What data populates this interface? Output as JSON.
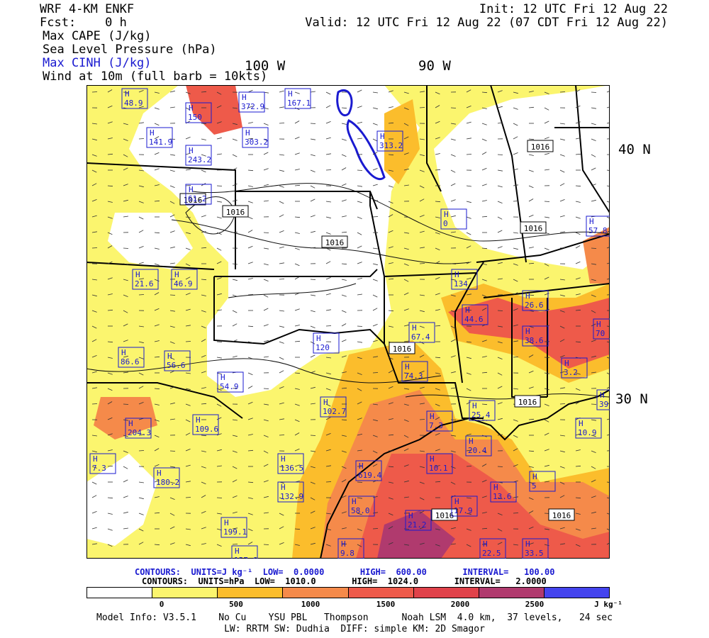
{
  "header": {
    "model": "WRF 4-KM ENKF",
    "fcst": "Fcst:    0 h",
    "init": "Init: 12 UTC Fri 12 Aug 22",
    "valid": "Valid: 12 UTC Fri 12 Aug 22 (07 CDT Fri 12 Aug 22)",
    "fields": [
      "Max CAPE (J/kg)",
      "Sea Level Pressure (hPa)",
      "Max CINH (J/kg)",
      "Wind at 10m (full barb = 10kts)"
    ]
  },
  "map": {
    "lon_labels": [
      "100 W",
      "90 W"
    ],
    "lat_labels": [
      "40 N",
      "30 N"
    ],
    "pressure_labels": [
      "1016",
      "1016",
      "1016",
      "1016",
      "1016",
      "1016",
      "1016",
      "1016",
      "1016"
    ],
    "cape_labels": [
      "48.9",
      "150",
      "372.9",
      "167.1",
      "141.9",
      "243.2",
      "303.2",
      "313.2",
      "61.2",
      "21.6",
      "46.9",
      "86.6",
      "56.6",
      "54.9",
      "102.7",
      "109.6",
      "204.3",
      "180.2",
      "136.5",
      "619.4",
      "132.9",
      "199.1",
      "157.6",
      "58.0",
      "9.8",
      "21.2",
      "17.9",
      "10.1",
      "20.4",
      "13.6",
      "22.5",
      "33.5",
      "10.9",
      "5",
      "3.2",
      "38.6",
      "26.6",
      "70",
      "57.8",
      "134",
      "44.6",
      "67.4",
      "74.3",
      "7.3",
      "25.4",
      "39",
      "120",
      "7.3",
      "0"
    ]
  },
  "legend": {
    "cape_contours": "CONTOURS:  UNITS=J kg⁻¹  LOW=  0.0000       HIGH=  600.00       INTERVAL=   100.00",
    "slp_contours": "CONTOURS:  UNITS=hPa  LOW=  1010.0       HIGH=  1024.0       INTERVAL=   2.0000",
    "ticks": [
      "0",
      "500",
      "1000",
      "1500",
      "2000",
      "2500"
    ],
    "unit": "J kg⁻¹",
    "colors": [
      "#ffffff",
      "#fbf56e",
      "#fbbd2c",
      "#f58a4a",
      "#ee5a4a",
      "#e0424a",
      "#b03a6e",
      "#4444ee"
    ]
  },
  "footer": {
    "line1": "Model Info: V3.5.1    No Cu    YSU PBL   Thompson      Noah LSM  4.0 km,  37 levels,   24 sec",
    "line2": "LW: RRTM SW: Dudhia  DIFF: simple KM: 2D Smagor"
  }
}
